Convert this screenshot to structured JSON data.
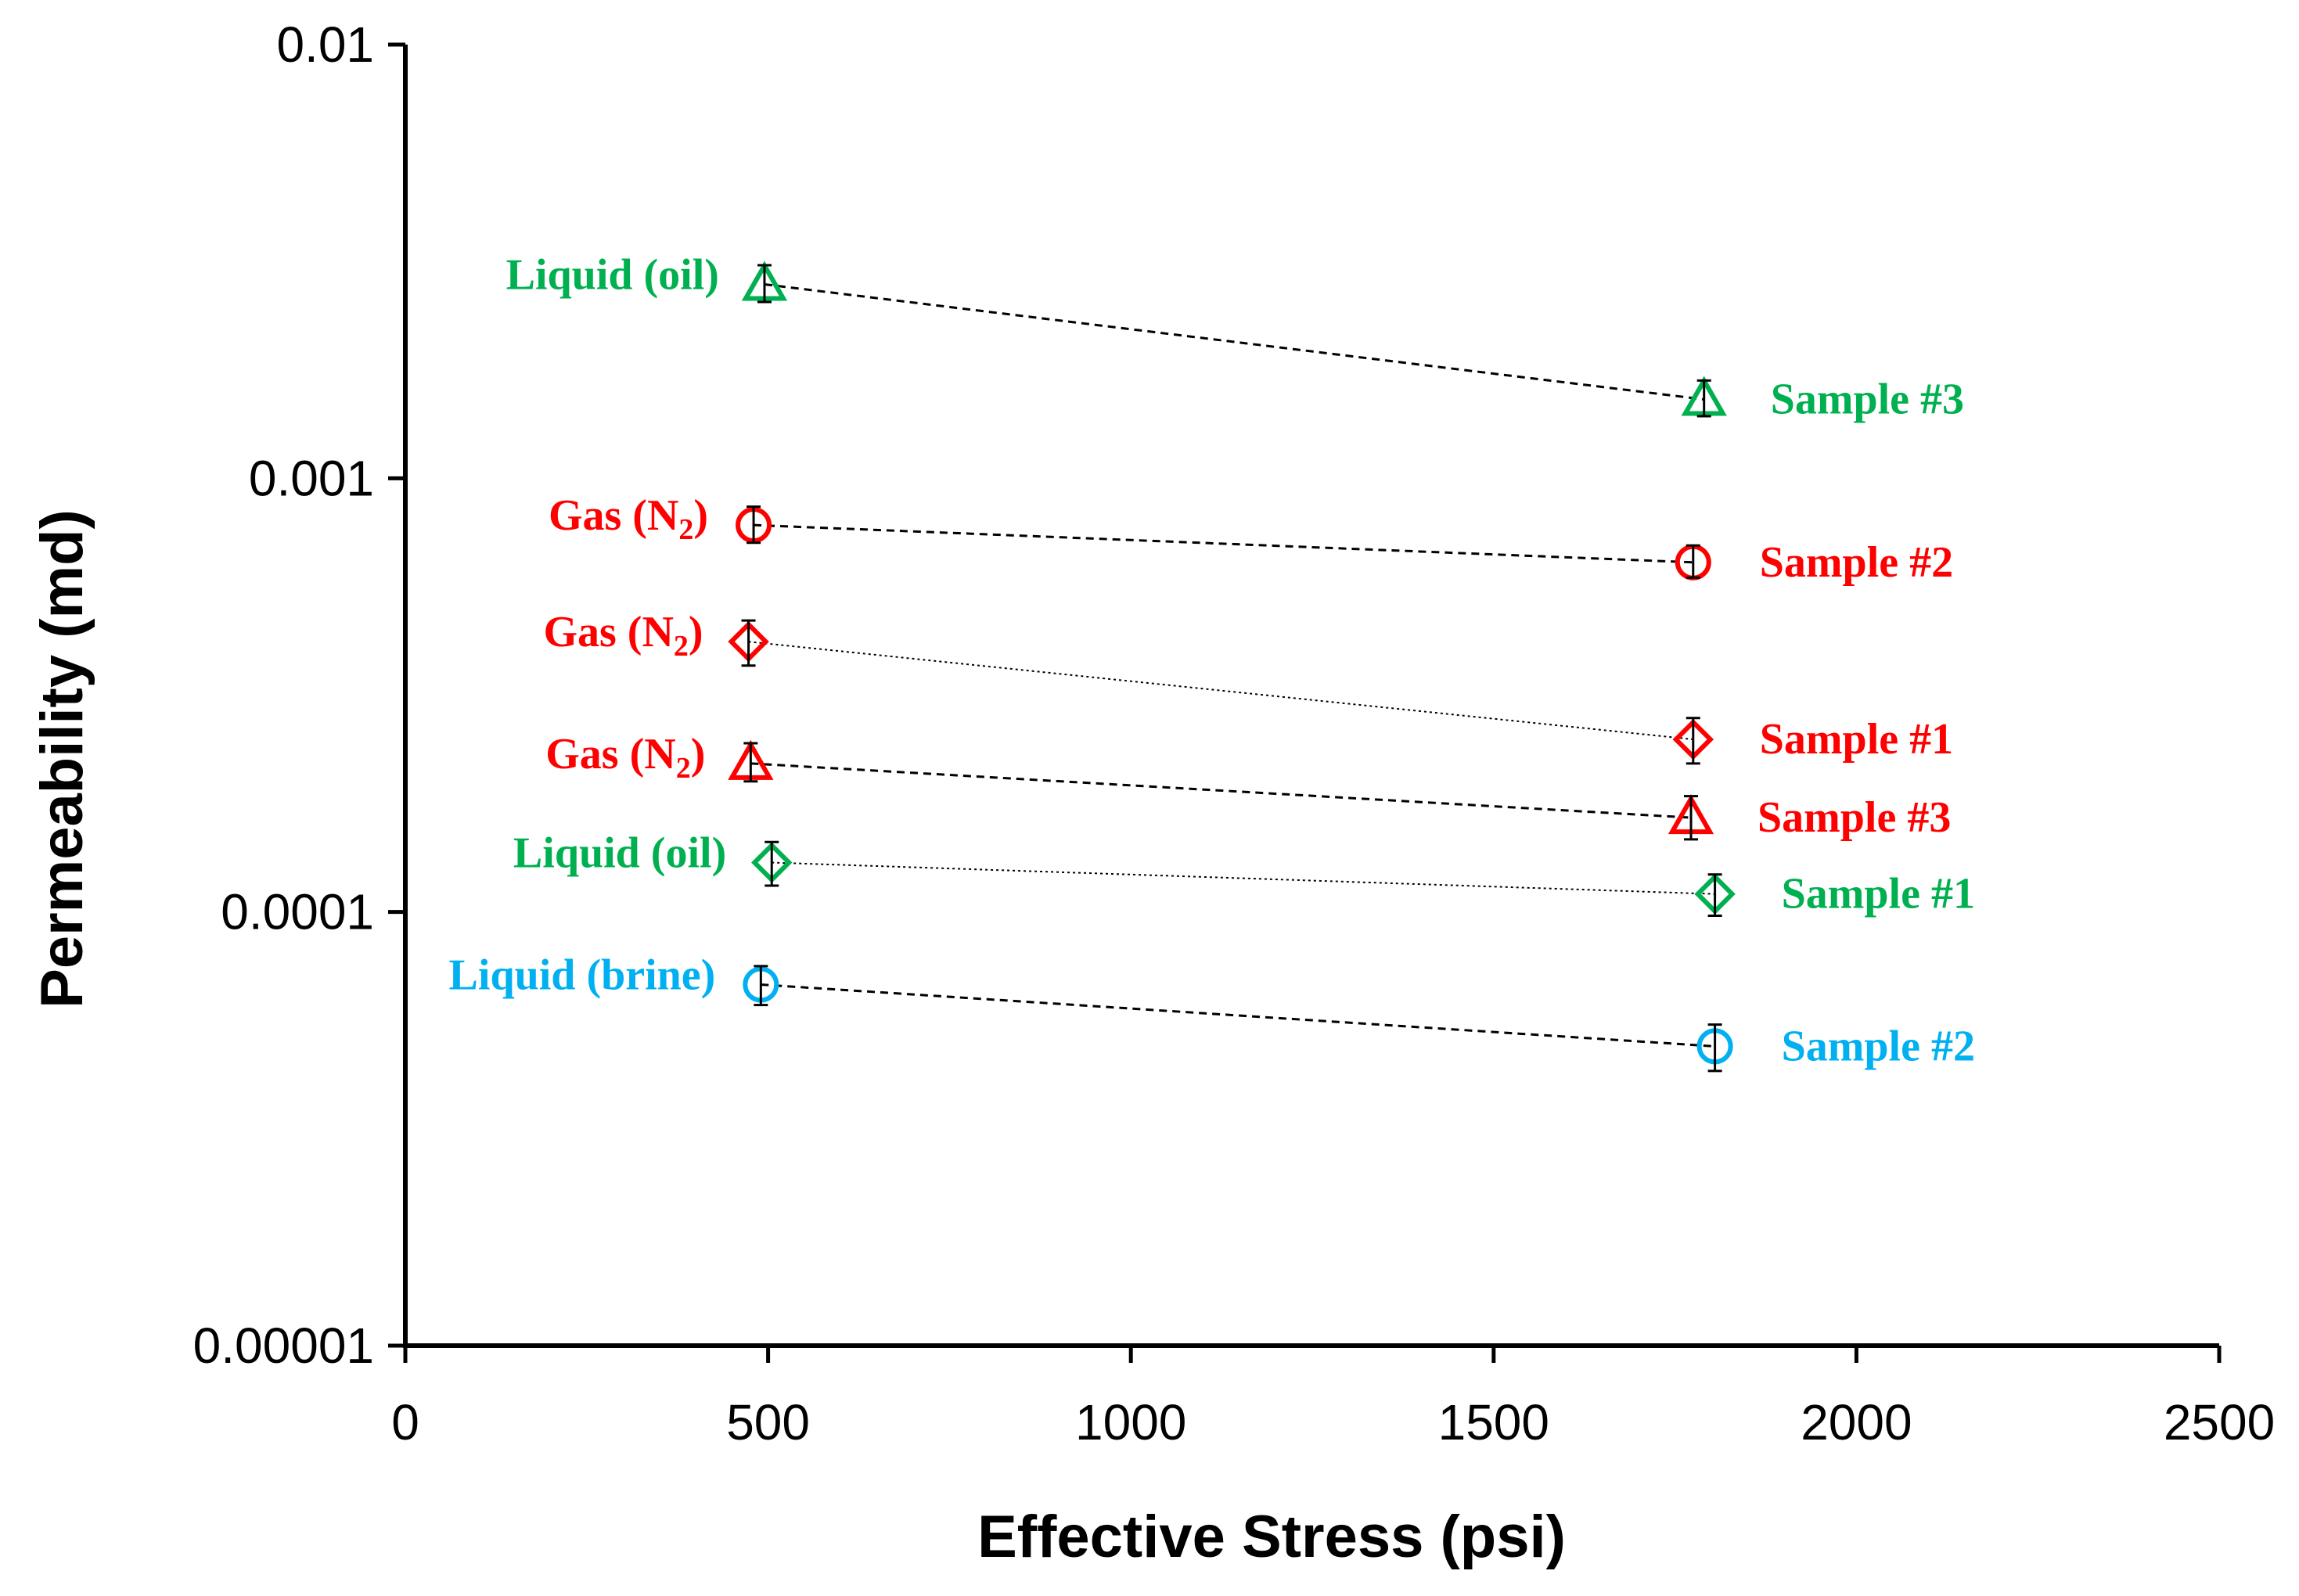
{
  "chart_data": {
    "type": "scatter",
    "title": "",
    "xlabel": "Effective Stress (psi)",
    "ylabel": "Permeability (md)",
    "xlim": [
      0,
      2500
    ],
    "ylim": [
      1e-05,
      0.01
    ],
    "yscale": "log",
    "x_ticks": [
      "0",
      "500",
      "1000",
      "1500",
      "2000",
      "2500"
    ],
    "y_ticks": [
      "0.01",
      "0.001",
      "0.0001",
      "0.00001"
    ],
    "colors": {
      "green": "#00b050",
      "red": "#ff0000",
      "blue": "#00b0f0"
    },
    "series": [
      {
        "name": "Liquid (oil) Sample #3",
        "color": "green",
        "marker": "triangle",
        "line": "dashed",
        "x": [
          495,
          1790
        ],
        "y": [
          0.0028,
          0.00152
        ],
        "err_low": [
          0.00025,
          0.00013
        ],
        "err_high": [
          0.0003,
          0.00016
        ],
        "left_label": "Liquid (oil)",
        "right_label": "Sample #3"
      },
      {
        "name": "Gas (N2) Sample #2",
        "color": "red",
        "marker": "circle",
        "line": "dashed",
        "x": [
          480,
          1775
        ],
        "y": [
          0.00078,
          0.00064
        ],
        "err_low": [
          7e-05,
          5e-05
        ],
        "err_high": [
          8e-05,
          6e-05
        ],
        "left_label": "Gas (N",
        "left_label_sub": "2",
        "left_label_end": ")",
        "right_label": "Sample #2"
      },
      {
        "name": "Gas (N2) Sample #1",
        "color": "red",
        "marker": "diamond",
        "line": "dotted",
        "x": [
          473,
          1775
        ],
        "y": [
          0.00042,
          0.00025
        ],
        "err_low": [
          5e-05,
          3e-05
        ],
        "err_high": [
          5e-05,
          3e-05
        ],
        "left_label": "Gas (N",
        "left_label_sub": "2",
        "left_label_end": ")",
        "right_label": "Sample #1"
      },
      {
        "name": "Gas (N2) Sample #3",
        "color": "red",
        "marker": "triangle",
        "line": "dashed",
        "x": [
          476,
          1772
        ],
        "y": [
          0.00022,
          0.000165
        ],
        "err_low": [
          2e-05,
          1.8e-05
        ],
        "err_high": [
          2.5e-05,
          2e-05
        ],
        "left_label": "Gas (N",
        "left_label_sub": "2",
        "left_label_end": ")",
        "right_label": "Sample #3"
      },
      {
        "name": "Liquid (oil) Sample #1",
        "color": "green",
        "marker": "diamond",
        "line": "dotted",
        "x": [
          505,
          1805
        ],
        "y": [
          0.00013,
          0.00011
        ],
        "err_low": [
          1.5e-05,
          1.2e-05
        ],
        "err_high": [
          1.5e-05,
          1.2e-05
        ],
        "left_label": "Liquid (oil)",
        "right_label": "Sample #1"
      },
      {
        "name": "Liquid (brine) Sample #2",
        "color": "blue",
        "marker": "circle",
        "line": "dashed",
        "x": [
          490,
          1805
        ],
        "y": [
          6.8e-05,
          4.9e-05
        ],
        "err_low": [
          7e-06,
          6e-06
        ],
        "err_high": [
          7e-06,
          6e-06
        ],
        "left_label": "Liquid (brine)",
        "right_label": "Sample #2"
      }
    ]
  }
}
